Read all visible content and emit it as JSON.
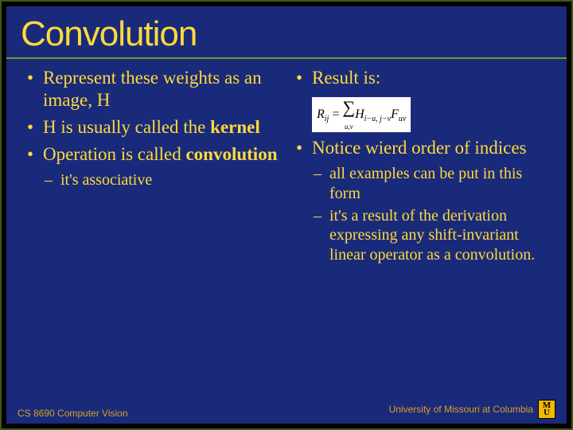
{
  "title": "Convolution",
  "left": {
    "b1": "Represent these weights as an image, H",
    "b2a": "H is usually called the ",
    "b2b": "kernel",
    "b3a": "Operation is called ",
    "b3b": "convolution",
    "s1": "it's associative"
  },
  "right": {
    "b1": "Result is:",
    "formula": {
      "R": "R",
      "ij": "ij",
      "eq": " = ",
      "sum": "∑",
      "uv": "u,v",
      "H": "H",
      "hsub": "i−u, j−v",
      "F": "F",
      "fsub": "uv"
    },
    "b2": "Notice wierd order of indices",
    "s1": "all examples can be put in this form",
    "s2": "it's a result of the derivation expressing any shift-invariant linear operator as a convolution."
  },
  "footer": {
    "left": "CS 8690 Computer Vision",
    "right": "University of Missouri at Columbia",
    "logo_top": "M",
    "logo_bot": "U"
  },
  "colors": {
    "bg": "#1a2a7a",
    "text": "#ffda3a",
    "accent": "#6aa02a",
    "footer_text": "#d8a020",
    "logo_bg": "#f5b800"
  }
}
